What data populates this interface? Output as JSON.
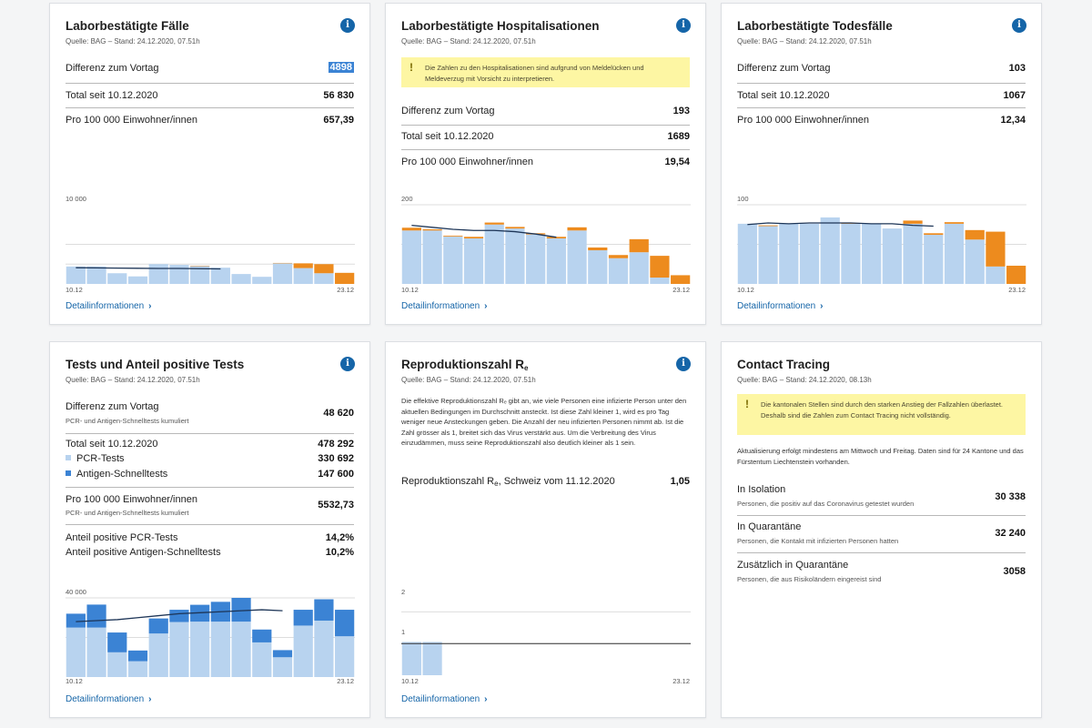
{
  "colors": {
    "light_bar": "#b8d3ef",
    "mid_bar": "#3b83d4",
    "orange": "#ed8b1e",
    "line": "#1d3557",
    "accent": "#1565a8",
    "warn_bg": "#fdf6a3"
  },
  "icons": {
    "info": "info-icon",
    "warning": "warning-icon",
    "chevron": "chevron-right-icon"
  },
  "common": {
    "detail_link": "Detailinformationen",
    "chevron": "›",
    "info_glyph": "i",
    "warn_glyph": "!"
  },
  "cards": {
    "cases": {
      "title": "Laborbestätigte Fälle",
      "source": "Quelle: BAG – Stand: 24.12.2020, 07.51h",
      "rows": [
        {
          "label": "Differenz zum Vortag",
          "value": "4898"
        },
        {
          "label": "Total seit 10.12.2020",
          "value": "56 830"
        },
        {
          "label": "Pro 100 000 Einwohner/innen",
          "value": "657,39"
        }
      ],
      "y_tick": "10 000",
      "x_start": "10.12",
      "x_end": "23.12"
    },
    "hosp": {
      "title": "Laborbestätigte Hospitalisationen",
      "source": "Quelle: BAG – Stand: 24.12.2020, 07.51h",
      "warning": "Die Zahlen zu den Hospitalisationen sind aufgrund von Meldelücken und Meldeverzug mit Vorsicht zu interpretieren.",
      "rows": [
        {
          "label": "Differenz zum Vortag",
          "value": "193"
        },
        {
          "label": "Total seit 10.12.2020",
          "value": "1689"
        },
        {
          "label": "Pro 100 000 Einwohner/innen",
          "value": "19,54"
        }
      ],
      "y_tick": "200",
      "x_start": "10.12",
      "x_end": "23.12"
    },
    "deaths": {
      "title": "Laborbestätigte Todesfälle",
      "source": "Quelle: BAG – Stand: 24.12.2020, 07.51h",
      "rows": [
        {
          "label": "Differenz zum Vortag",
          "value": "103"
        },
        {
          "label": "Total seit 10.12.2020",
          "value": "1067"
        },
        {
          "label": "Pro 100 000 Einwohner/innen",
          "value": "12,34"
        }
      ],
      "y_tick": "100",
      "x_start": "10.12",
      "x_end": "23.12"
    },
    "tests": {
      "title": "Tests und Anteil positive Tests",
      "source": "Quelle: BAG – Stand: 24.12.2020, 07.51h",
      "diff_label": "Differenz zum Vortag",
      "diff_sub": "PCR- und Antigen-Schnelltests kumuliert",
      "diff_value": "48 620",
      "total_label": "Total seit 10.12.2020",
      "total_value": "478 292",
      "pcr_label": "PCR-Tests",
      "pcr_value": "330 692",
      "antigen_label": "Antigen-Schnelltests",
      "antigen_value": "147 600",
      "per_label": "Pro 100 000 Einwohner/innen",
      "per_sub": "PCR- und Antigen-Schnelltests kumuliert",
      "per_value": "5532,73",
      "pos_pcr_label": "Anteil positive PCR-Tests",
      "pos_pcr_value": "14,2%",
      "pos_ag_label": "Anteil positive Antigen-Schnelltests",
      "pos_ag_value": "10,2%",
      "y_tick": "40 000",
      "x_start": "10.12",
      "x_end": "23.12"
    },
    "repro": {
      "title_main": "Reproduktionszahl R",
      "title_sub": "e",
      "source": "Quelle: BAG – Stand: 24.12.2020, 07.51h",
      "description": "Die effektive Reproduktionszahl Rₑ gibt an, wie viele Personen eine infizierte Person unter den aktuellen Bedingungen im Durchschnitt ansteckt. Ist diese Zahl kleiner 1, wird es pro Tag weniger neue Ansteckungen geben. Die Anzahl der neu infizierten Personen nimmt ab. Ist die Zahl grösser als 1, breitet sich das Virus verstärkt aus. Um die Verbreitung des Virus einzudämmen, muss seine Reproduktionszahl also deutlich kleiner als 1 sein.",
      "row_label_a": "Reproduktionszahl R",
      "row_label_sub": "e",
      "row_label_b": ", Schweiz vom 11.12.2020",
      "row_value": "1,05",
      "y_tick_2": "2",
      "y_tick_1": "1",
      "x_start": "10.12",
      "x_end": "23.12"
    },
    "tracing": {
      "title": "Contact Tracing",
      "source": "Quelle: BAG – Stand: 24.12.2020, 08.13h",
      "warning": "Die kantonalen Stellen sind durch den starken Anstieg der Fallzahlen überlastet. Deshalb sind die Zahlen zum Contact Tracing nicht vollständig.",
      "update_note": "Aktualisierung erfolgt mindestens am Mittwoch und Freitag. Daten sind für 24 Kantone und das Fürstentum Liechtenstein vorhanden.",
      "rows": [
        {
          "label": "In Isolation",
          "sub": "Personen, die positiv auf das Coronavirus getestet wurden",
          "value": "30 338"
        },
        {
          "label": "In Quarantäne",
          "sub": "Personen, die Kontakt mit infizierten Personen hatten",
          "value": "32 240"
        },
        {
          "label": "Zusätzlich in Quarantäne",
          "sub": "Personen, die aus Risikoländern eingereist sind",
          "value": "3058"
        }
      ]
    }
  },
  "chart_data": [
    {
      "type": "bar",
      "title": "Laborbestätigte Fälle",
      "x": [
        "10.12",
        "11.12",
        "12.12",
        "13.12",
        "14.12",
        "15.12",
        "16.12",
        "17.12",
        "18.12",
        "19.12",
        "20.12",
        "21.12",
        "22.12",
        "23.12"
      ],
      "ylim": [
        0,
        20000
      ],
      "y_ticks": [
        10000
      ],
      "series": [
        {
          "values": [
            4400,
            4400,
            2700,
            1900,
            5000,
            4800,
            4500,
            4100,
            2500,
            1800,
            5200,
            4000,
            2700,
            0
          ]
        },
        {
          "values": [
            0,
            0,
            0,
            0,
            0,
            0,
            100,
            0,
            0,
            0,
            100,
            1200,
            2300,
            2800
          ]
        },
        {
          "values": [
            4100,
            4050,
            4000,
            3950,
            3900,
            3900,
            3850,
            3800,
            null,
            null,
            null,
            null,
            null,
            null
          ]
        }
      ]
    },
    {
      "type": "bar",
      "title": "Laborbestätigte Hospitalisationen",
      "x": [
        "10.12",
        "11.12",
        "12.12",
        "13.12",
        "14.12",
        "15.12",
        "16.12",
        "17.12",
        "18.12",
        "19.12",
        "20.12",
        "21.12",
        "22.12",
        "23.12"
      ],
      "ylim": [
        0,
        200
      ],
      "y_ticks": [
        200
      ],
      "series": [
        {
          "values": [
            135,
            135,
            120,
            115,
            150,
            140,
            125,
            115,
            135,
            85,
            65,
            80,
            16,
            0
          ]
        },
        {
          "values": [
            7,
            3,
            2,
            4,
            5,
            4,
            3,
            4,
            8,
            7,
            8,
            33,
            55,
            22
          ]
        },
        {
          "values": [
            148,
            143,
            138,
            135,
            135,
            132,
            126,
            118,
            null,
            null,
            null,
            null,
            null,
            null
          ]
        }
      ]
    },
    {
      "type": "bar",
      "title": "Laborbestätigte Todesfälle",
      "x": [
        "10.12",
        "11.12",
        "12.12",
        "13.12",
        "14.12",
        "15.12",
        "16.12",
        "17.12",
        "18.12",
        "19.12",
        "20.12",
        "21.12",
        "22.12",
        "23.12"
      ],
      "ylim": [
        0,
        100
      ],
      "y_ticks": [
        100
      ],
      "series": [
        {
          "values": [
            76,
            73,
            76,
            76,
            84,
            76,
            76,
            70,
            76,
            62,
            76,
            56,
            22,
            0
          ]
        },
        {
          "values": [
            0,
            1,
            0,
            0,
            0,
            1,
            0,
            0,
            4,
            2,
            2,
            12,
            44,
            23
          ]
        },
        {
          "values": [
            75,
            77,
            76,
            77,
            77,
            77,
            76,
            76,
            74,
            73,
            null,
            null,
            null,
            null
          ]
        }
      ]
    },
    {
      "type": "bar",
      "title": "Tests und Anteil positive Tests",
      "x": [
        "10.12",
        "11.12",
        "12.12",
        "13.12",
        "14.12",
        "15.12",
        "16.12",
        "17.12",
        "18.12",
        "19.12",
        "20.12",
        "21.12",
        "22.12",
        "23.12"
      ],
      "ylim": [
        0,
        40000
      ],
      "y_ticks": [
        40000
      ],
      "series": [
        {
          "name": "PCR-Tests",
          "values": [
            25000,
            25000,
            12500,
            8000,
            22000,
            27800,
            28000,
            28000,
            28000,
            17500,
            10000,
            26000,
            28500,
            20600
          ]
        },
        {
          "name": "Antigen-Schnelltests",
          "values": [
            7000,
            11600,
            10000,
            5400,
            7600,
            6200,
            8500,
            10000,
            12000,
            6500,
            3600,
            8000,
            10800,
            13400
          ]
        },
        {
          "values": [
            28000,
            28500,
            29000,
            30000,
            31000,
            32000,
            32500,
            33000,
            33500,
            34000,
            33500,
            null,
            null,
            null
          ]
        }
      ]
    },
    {
      "type": "bar",
      "title": "Reproduktionszahl Rₑ",
      "x": [
        "10.12",
        "11.12",
        "12.12",
        "13.12",
        "14.12",
        "15.12",
        "16.12",
        "17.12",
        "18.12",
        "19.12",
        "20.12",
        "21.12",
        "22.12",
        "23.12"
      ],
      "ylim": [
        0,
        2.5
      ],
      "y_ticks": [
        1,
        2
      ],
      "series": [
        {
          "values": [
            1.05,
            1.05,
            null,
            null,
            null,
            null,
            null,
            null,
            null,
            null,
            null,
            null,
            null,
            null
          ]
        }
      ]
    }
  ]
}
